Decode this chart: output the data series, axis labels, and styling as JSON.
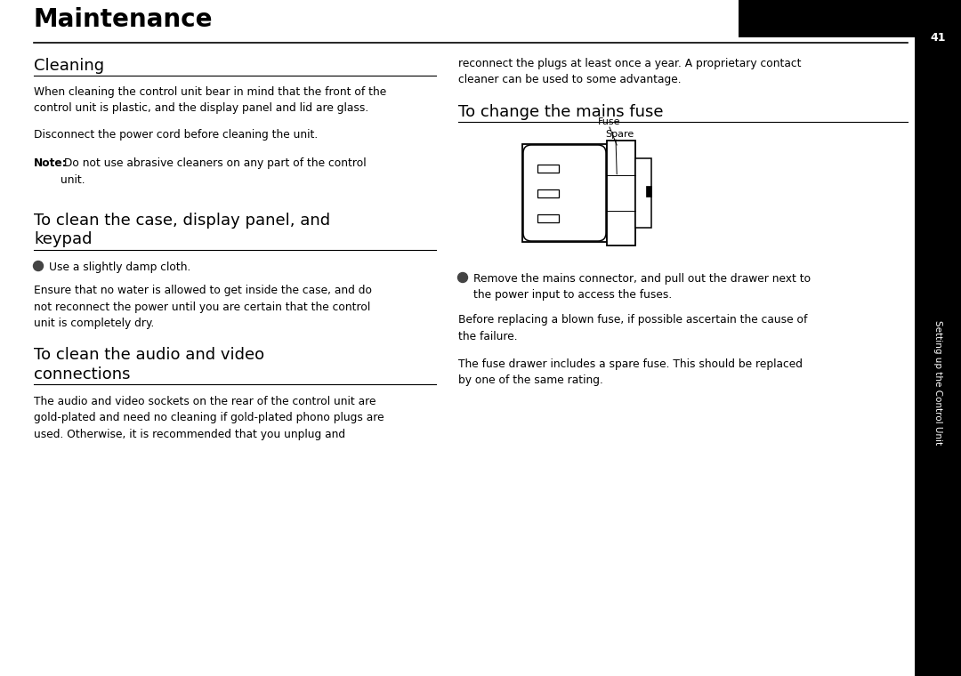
{
  "title": "Maintenance",
  "bg_color": "#ffffff",
  "sidebar_color": "#000000",
  "sidebar_text": "Setting up the Control Unit",
  "sidebar_number": "41",
  "section1_title": "Cleaning",
  "section1_body1": "When cleaning the control unit bear in mind that the front of the\ncontrol unit is plastic, and the display panel and lid are glass.",
  "section1_body2": "Disconnect the power cord before cleaning the unit.",
  "section1_body3_bold": "Note:",
  "section1_body3_rest": " Do not use abrasive cleaners on any part of the control\nunit.",
  "section2_title": "To clean the case, display panel, and\nkeypad",
  "section2_bullet_text": "Use a slightly damp cloth.",
  "section2_body": "Ensure that no water is allowed to get inside the case, and do\nnot reconnect the power until you are certain that the control\nunit is completely dry.",
  "section3_title": "To clean the audio and video\nconnections",
  "section3_body": "The audio and video sockets on the rear of the control unit are\ngold-plated and need no cleaning if gold-plated phono plugs are\nused. Otherwise, it is recommended that you unplug and",
  "col2_body1": "reconnect the plugs at least once a year. A proprietary contact\ncleaner can be used to some advantage.",
  "section4_title": "To change the mains fuse",
  "fuse_label": "Fuse",
  "spare_label": "Spare",
  "section4_bullet_text": "Remove the mains connector, and pull out the drawer next to\nthe power input to access the fuses.",
  "section4_body1": "Before replacing a blown fuse, if possible ascertain the cause of\nthe failure.",
  "section4_body2": "The fuse drawer includes a spare fuse. This should be replaced\nby one of the same rating."
}
